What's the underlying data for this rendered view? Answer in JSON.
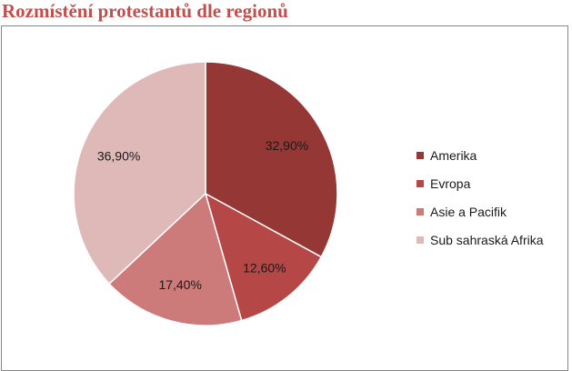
{
  "chart_data": {
    "type": "pie",
    "title": "Rozmístění protestantů dle regionů",
    "categories": [
      "Amerika",
      "Evropa",
      "Asie a Pacifik",
      "Sub sahraská Afrika"
    ],
    "values": [
      32.9,
      12.6,
      17.4,
      36.9
    ],
    "value_labels": [
      "32,90%",
      "12,60%",
      "17,40%",
      "36,90%"
    ],
    "colors": [
      "#953735",
      "#b54846",
      "#cd7a7a",
      "#dfb9b8"
    ],
    "legend_position": "right",
    "start_angle": "top, clockwise"
  }
}
